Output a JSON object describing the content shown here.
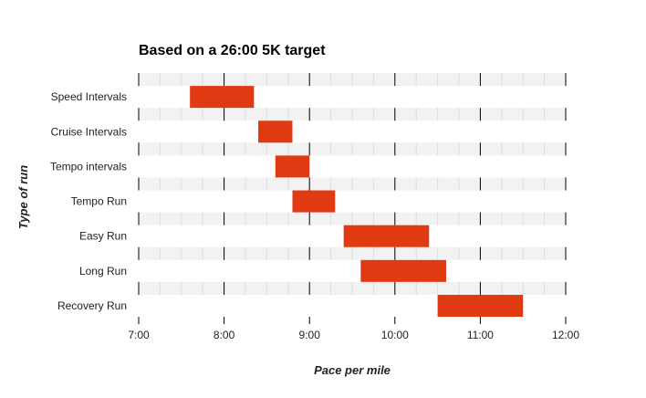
{
  "chart_data": {
    "type": "bar",
    "orientation": "horizontal-range",
    "title": "Based on a 26:00 5K target",
    "xlabel": "Pace per mile",
    "ylabel": "Type of run",
    "x_unit": "minutes",
    "xlim": [
      7,
      12
    ],
    "x_ticks": [
      7,
      8,
      9,
      10,
      11,
      12
    ],
    "x_tick_labels": [
      "7:00",
      "8:00",
      "9:00",
      "10:00",
      "11:00",
      "12:00"
    ],
    "categories": [
      "Speed Intervals",
      "Cruise Intervals",
      "Tempo intervals",
      "Tempo Run",
      "Easy Run",
      "Long Run",
      "Recovery Run"
    ],
    "series": [
      {
        "ranges": [
          [
            7.6,
            8.35
          ],
          [
            8.4,
            8.8
          ],
          [
            8.6,
            9.0
          ],
          [
            8.8,
            9.3
          ],
          [
            9.4,
            10.4
          ],
          [
            9.6,
            10.6
          ],
          [
            10.5,
            11.5
          ]
        ],
        "color": "#e03a12"
      }
    ],
    "grid": true,
    "legend": "none",
    "colors": {
      "bar": "#e03a12",
      "band_odd": "#ffffff",
      "band_even": "#f2f2f2",
      "grid": "#dddddd",
      "axis": "#000000"
    }
  }
}
